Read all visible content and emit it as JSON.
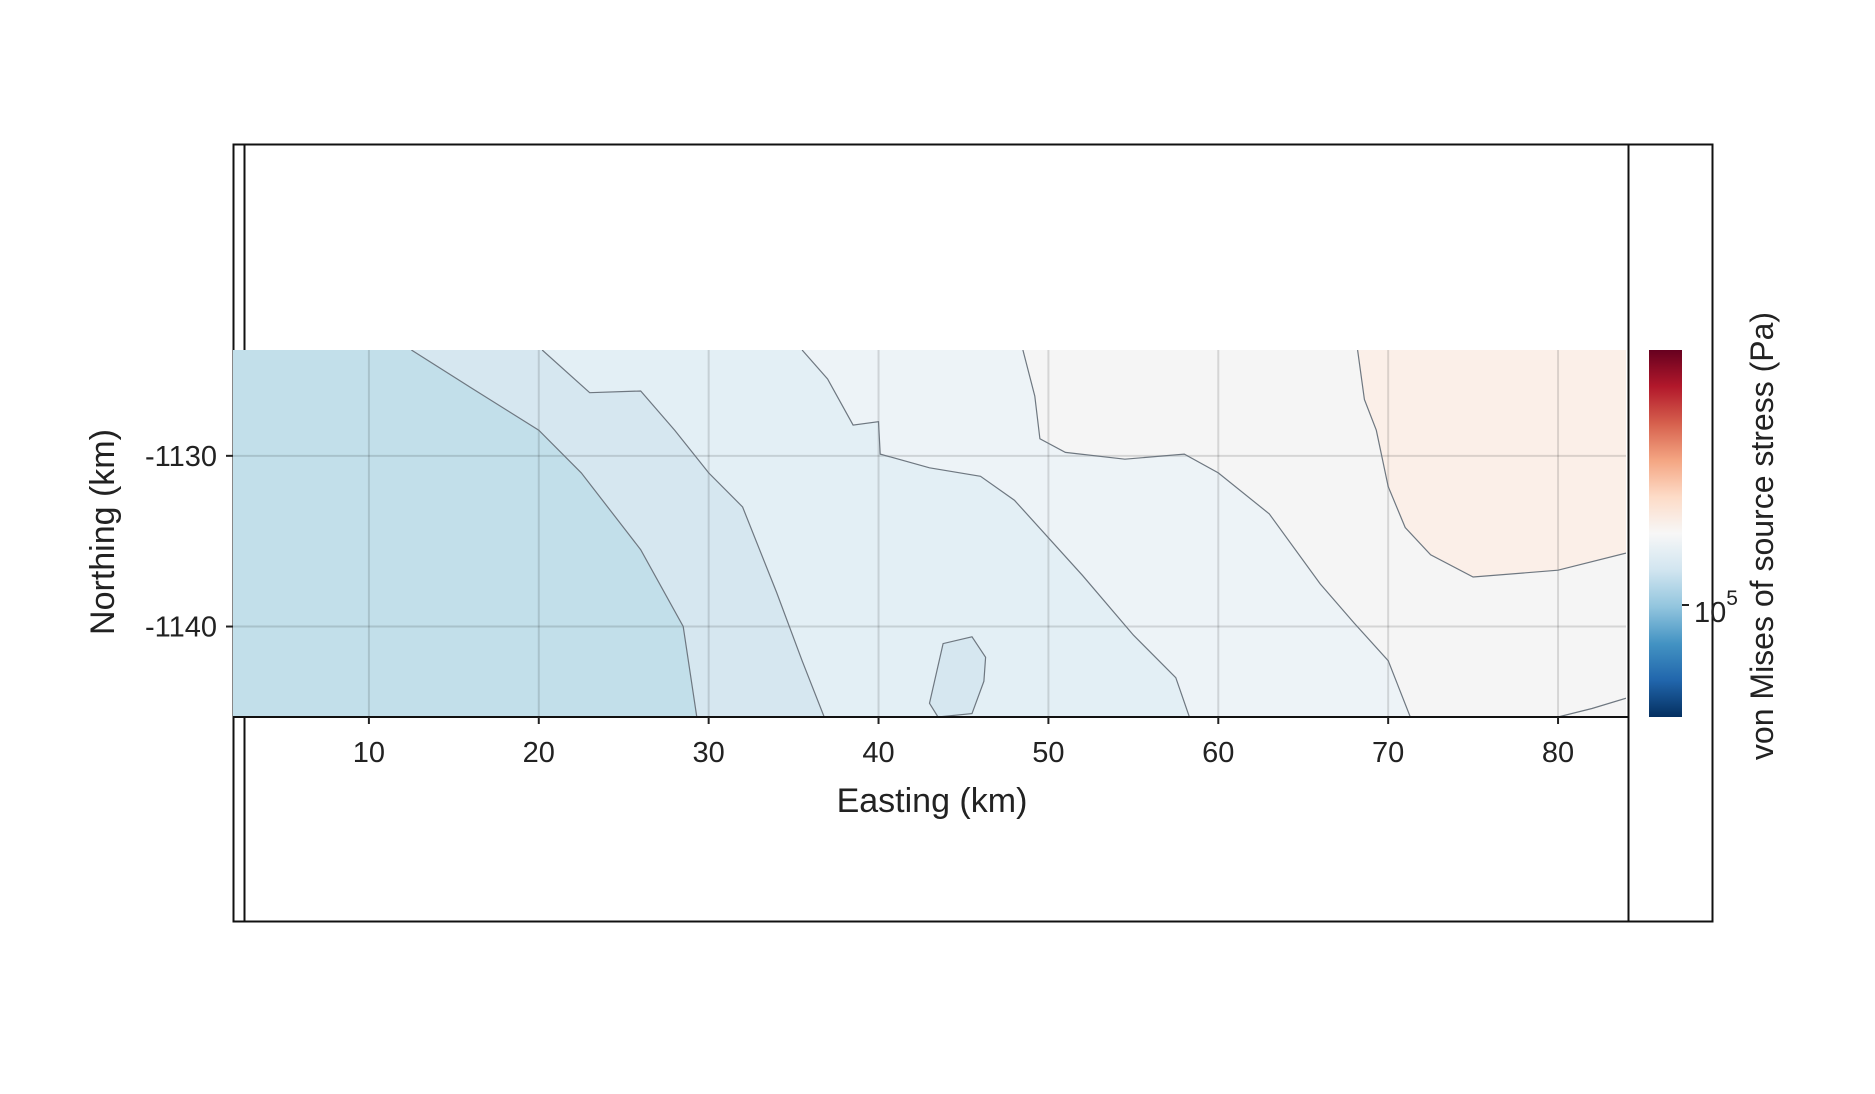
{
  "chart_data": {
    "type": "heatmap",
    "xlabel": "Easting (km)",
    "ylabel": "Northing (km)",
    "colorbar_label": "von Mises of source stress (Pa)",
    "colorbar_tick": {
      "base": "10",
      "exponent": "5"
    },
    "colormap": "RdBu_r",
    "colormap_stops": [
      "#053061",
      "#2166ac",
      "#4393c3",
      "#92c5de",
      "#d1e5f0",
      "#f7f7f7",
      "#fddbc7",
      "#f4a582",
      "#d6604d",
      "#b2182b",
      "#67001f"
    ],
    "x_ticks": [
      10,
      20,
      30,
      40,
      50,
      60,
      70,
      80
    ],
    "y_ticks": [
      -1130,
      -1140
    ],
    "y_tick_labels": [
      "-1130",
      "-1140"
    ],
    "xlim": [
      2,
      84
    ],
    "ylim": [
      -1145.3,
      -1123.8
    ],
    "grid": true,
    "contour_level_colors": [
      "#c2dfea",
      "#d6e7f0",
      "#e3eff5",
      "#edf3f7",
      "#f5f5f5",
      "#fbefe8"
    ],
    "contour_lines": [
      [
        [
          12.5,
          -1123.8
        ],
        [
          16,
          -1126
        ],
        [
          20,
          -1128.5
        ],
        [
          22.5,
          -1131
        ],
        [
          26,
          -1135.5
        ],
        [
          28.5,
          -1140
        ],
        [
          29.3,
          -1145.3
        ]
      ],
      [
        [
          20.2,
          -1123.8
        ],
        [
          23,
          -1126.3
        ],
        [
          26,
          -1126.2
        ],
        [
          28,
          -1128.5
        ],
        [
          30,
          -1131
        ],
        [
          32,
          -1133
        ],
        [
          34,
          -1138
        ],
        [
          35.5,
          -1142
        ],
        [
          36.8,
          -1145.3
        ]
      ],
      [
        [
          35.5,
          -1123.8
        ],
        [
          37,
          -1125.5
        ],
        [
          38.5,
          -1128.2
        ],
        [
          40,
          -1128
        ],
        [
          40.1,
          -1129.9
        ],
        [
          43,
          -1130.7
        ],
        [
          46,
          -1131.2
        ],
        [
          48,
          -1132.6
        ],
        [
          52,
          -1137
        ],
        [
          55,
          -1140.5
        ],
        [
          57.5,
          -1143
        ],
        [
          58.3,
          -1145.3
        ]
      ],
      [
        [
          48.5,
          -1123.8
        ],
        [
          49.2,
          -1126.5
        ],
        [
          49.5,
          -1129
        ],
        [
          51,
          -1129.8
        ],
        [
          54.5,
          -1130.2
        ],
        [
          58,
          -1129.9
        ],
        [
          60,
          -1131
        ],
        [
          63,
          -1133.4
        ],
        [
          66,
          -1137.5
        ],
        [
          68,
          -1139.8
        ],
        [
          70,
          -1142
        ],
        [
          71.3,
          -1145.3
        ]
      ],
      [
        [
          68.2,
          -1123.8
        ],
        [
          68.6,
          -1126.7
        ],
        [
          69.3,
          -1128.5
        ],
        [
          70,
          -1131.8
        ],
        [
          71,
          -1134.2
        ],
        [
          72.5,
          -1135.8
        ],
        [
          75,
          -1137.1
        ],
        [
          80,
          -1136.7
        ],
        [
          84,
          -1135.7
        ]
      ],
      [
        [
          80,
          -1145.3
        ],
        [
          82,
          -1144.8
        ],
        [
          84,
          -1144.2
        ]
      ]
    ],
    "closed_contour": [
      [
        43,
        -1144.5
      ],
      [
        43.8,
        -1141
      ],
      [
        45.5,
        -1140.6
      ],
      [
        46.3,
        -1141.8
      ],
      [
        46.2,
        -1143.2
      ],
      [
        45.5,
        -1145.1
      ],
      [
        43.5,
        -1145.3
      ]
    ]
  }
}
